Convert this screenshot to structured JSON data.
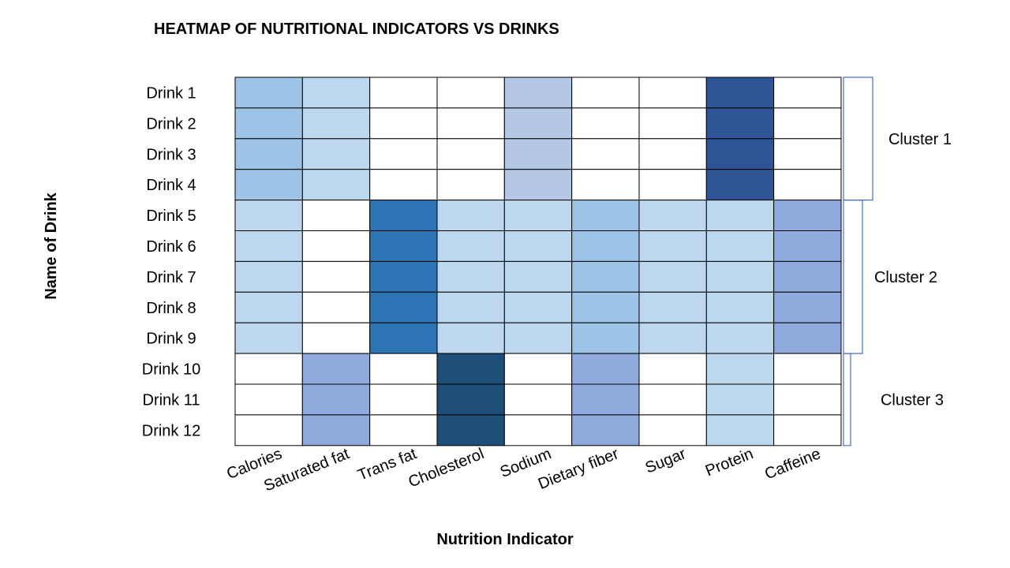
{
  "chart_data": {
    "type": "heatmap",
    "title": "HEATMAP OF NUTRITIONAL INDICATORS VS DRINKS",
    "xlabel": "Nutrition Indicator",
    "ylabel": "Name of Drink",
    "x_categories": [
      "Calories",
      "Saturated fat",
      "Trans fat",
      "Cholesterol",
      "Sodium",
      "Dietary fiber",
      "Sugar",
      "Protein",
      "Caffeine"
    ],
    "y_categories": [
      "Drink 1",
      "Drink 2",
      "Drink 3",
      "Drink 4",
      "Drink 5",
      "Drink 6",
      "Drink 7",
      "Drink 8",
      "Drink 9",
      "Drink 10",
      "Drink 11",
      "Drink 12"
    ],
    "values": [
      [
        2,
        1,
        0,
        0,
        1.5,
        0,
        0,
        5,
        0
      ],
      [
        2,
        1,
        0,
        0,
        1.5,
        0,
        0,
        5,
        0
      ],
      [
        2,
        1,
        0,
        0,
        1.5,
        0,
        0,
        5,
        0
      ],
      [
        2,
        1,
        0,
        0,
        1.5,
        0,
        0,
        5,
        0
      ],
      [
        1,
        0,
        4,
        1,
        1,
        2,
        1,
        1,
        3
      ],
      [
        1,
        0,
        4,
        1,
        1,
        2,
        1,
        1,
        3
      ],
      [
        1,
        0,
        4,
        1,
        1,
        2,
        1,
        1,
        3
      ],
      [
        1,
        0,
        4,
        1,
        1,
        2,
        1,
        1,
        3
      ],
      [
        1,
        0,
        4,
        1,
        1,
        2,
        1,
        1,
        3
      ],
      [
        0,
        3,
        0,
        6,
        0,
        3,
        0,
        1,
        0
      ],
      [
        0,
        3,
        0,
        6,
        0,
        3,
        0,
        1,
        0
      ],
      [
        0,
        3,
        0,
        6,
        0,
        3,
        0,
        1,
        0
      ]
    ],
    "color_scale": {
      "0": "#ffffff",
      "1": "#bdd7ee",
      "1.5": "#b4c7e7",
      "2": "#9dc3e6",
      "3": "#8faadc",
      "4": "#2e75b6",
      "5": "#2f5597",
      "6": "#1f4e79"
    },
    "clusters": [
      {
        "label": "Cluster 1",
        "start_row": 0,
        "end_row": 3
      },
      {
        "label": "Cluster 2",
        "start_row": 4,
        "end_row": 8
      },
      {
        "label": "Cluster 3",
        "start_row": 9,
        "end_row": 11
      }
    ],
    "bracket_color": "#4472c4",
    "grid": true,
    "legend": "none"
  }
}
